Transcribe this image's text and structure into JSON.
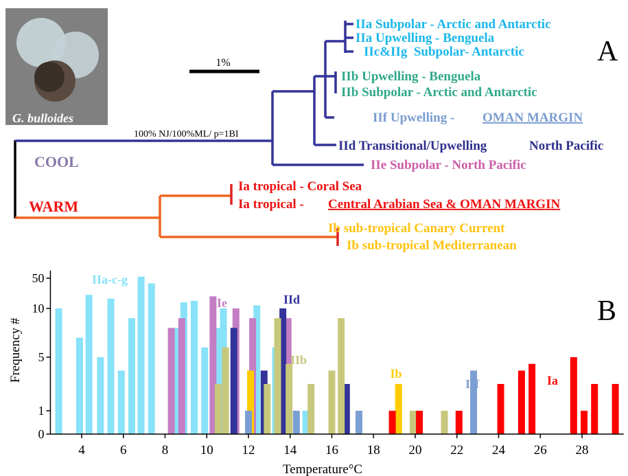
{
  "panel_a": {
    "label": "A",
    "image_caption": "G. bulloides",
    "scale_bar": "1%",
    "support": "100% NJ/100%ML/ p=1BI",
    "clade_cool": "COOL",
    "clade_warm": "WARM",
    "leaves": [
      "IIa Subpolar - Arctic and Antarctic",
      "IIa Upwelling - Benguela",
      "IIc&IIg  Subpolar- Antarctic",
      "IIb Upwelling - Benguela",
      "IIb Subpolar - Arctic and Antarctic",
      "IIf Upwelling -",
      "OMAN MARGIN",
      "IId Transitional/Upwelling",
      "North Pacific",
      "IIe Subpolar - North Pacific",
      "Ia tropical - Coral Sea",
      "Ia tropical -",
      "Central Arabian Sea & OMAN MARGIN",
      "Ib sub-tropical Canary Current",
      "Ib sub-tropical Mediterranean"
    ]
  },
  "chart_data": {
    "type": "bar",
    "panel_label": "B",
    "x_label": "Temperature°C",
    "y_label": "Frequency #",
    "xlim": [
      2.5,
      30
    ],
    "xticks": [
      4,
      6,
      8,
      10,
      12,
      14,
      16,
      18,
      20,
      22,
      24,
      26,
      28
    ],
    "ylim": [
      0,
      60
    ],
    "yticks": [
      0,
      1,
      5,
      10,
      50
    ],
    "series": [
      {
        "name": "IIa-c-g",
        "color": "#88e2f8",
        "x": [
          2.9,
          3.9,
          4.35,
          4.9,
          5.4,
          5.9,
          6.4,
          6.85,
          7.35,
          8.5,
          8.9,
          9.4,
          9.9,
          10.5,
          10.8,
          12.4,
          12.85,
          13.3,
          14.75
        ],
        "values": [
          10,
          7,
          28,
          5,
          23,
          4,
          9,
          52,
          43,
          8,
          18,
          20,
          6,
          8,
          10,
          14,
          1,
          6,
          1
        ]
      },
      {
        "name": "IIe",
        "color": "#c47ec4",
        "x": [
          8.3,
          8.8,
          10.3,
          11.4,
          12.2,
          13.9
        ],
        "values": [
          8,
          9,
          26,
          10,
          9,
          9
        ]
      },
      {
        "name": "IId",
        "color": "#33339a",
        "x": [
          11.3,
          12.75,
          13.65,
          16.7
        ],
        "values": [
          8,
          4,
          10,
          3
        ]
      },
      {
        "name": "IIb",
        "color": "#c8c87c",
        "x": [
          10.55,
          10.9,
          12.9,
          13.4,
          13.95,
          15.0,
          16.0,
          16.45,
          19.9,
          21.4
        ],
        "values": [
          3,
          6,
          3,
          9,
          4.5,
          3,
          4,
          9,
          1,
          1
        ]
      },
      {
        "name": "Ib",
        "color": "#ffcc00",
        "x": [
          12.1,
          19.2
        ],
        "values": [
          4,
          3
        ]
      },
      {
        "name": "IIf",
        "color": "#7b9fd2",
        "x": [
          12.0,
          14.3,
          17.3,
          22.8
        ],
        "values": [
          1,
          1,
          1,
          4
        ]
      },
      {
        "name": "Ia",
        "color": "#ff0000",
        "x": [
          18.9,
          20.2,
          22.1,
          24.1,
          25.1,
          25.6,
          27.6,
          28.1,
          28.6,
          29.6
        ],
        "values": [
          1,
          1,
          1,
          3,
          4,
          4.5,
          5,
          1,
          3,
          3
        ]
      }
    ]
  }
}
